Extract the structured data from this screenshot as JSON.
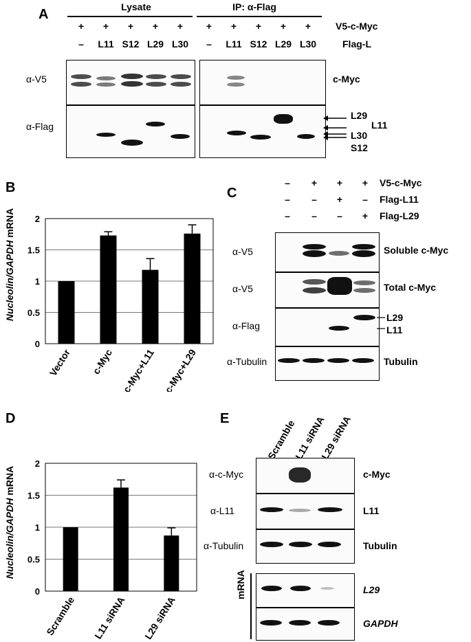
{
  "panel_a": {
    "letter": "A",
    "group_lysate": "Lysate",
    "group_ip": "IP: α-Flag",
    "row1_label": "V5-c-Myc",
    "row2_label": "Flag-L",
    "plus": "+",
    "minus": "–",
    "lane_labels": [
      "–",
      "L11",
      "S12",
      "L29",
      "L30"
    ],
    "blot1_antibody": "α-V5",
    "blot1_protein": "c-Myc",
    "blot2_antibody": "α-Flag",
    "arrow_labels": [
      "L29",
      "L11",
      "L30",
      "S12"
    ]
  },
  "panel_b": {
    "letter": "B",
    "ylabel_italic": "Nucleolin/GAPDH",
    "ylabel_rest": " mRNA"
  },
  "panel_c": {
    "letter": "C",
    "row_labels": [
      "V5-c-Myc",
      "Flag-L11",
      "Flag-L29"
    ],
    "row_signs": [
      [
        "–",
        "+",
        "+",
        "+"
      ],
      [
        "–",
        "–",
        "+",
        "–"
      ],
      [
        "–",
        "–",
        "–",
        "+"
      ]
    ],
    "blots": [
      {
        "antibody": "α-V5",
        "protein": "Soluble c-Myc"
      },
      {
        "antibody": "α-V5",
        "protein": "Total c-Myc"
      },
      {
        "antibody": "α-Flag",
        "protein": ""
      },
      {
        "antibody": "α-Tubulin",
        "protein": "Tubulin"
      }
    ],
    "flag_labels": [
      "L29",
      "L11"
    ]
  },
  "panel_d": {
    "letter": "D",
    "ylabel_italic": "Nucleolin/GAPDH",
    "ylabel_rest": " mRNA"
  },
  "panel_e": {
    "letter": "E",
    "lane_labels": [
      "Scramble",
      "L11 siRNA",
      "L29 siRNA"
    ],
    "blots": [
      {
        "antibody": "α-c-Myc",
        "protein": "c-Myc"
      },
      {
        "antibody": "α-L11",
        "protein": "L11"
      },
      {
        "antibody": "α-Tubulin",
        "protein": "Tubulin"
      }
    ],
    "mrna_label": "mRNA",
    "mrna_rows": [
      "L29",
      "GAPDH"
    ]
  },
  "chart_data": [
    {
      "type": "bar",
      "panel": "B",
      "categories": [
        "Vector",
        "c-Myc",
        "c-Myc+L11",
        "c-Myc+L29"
      ],
      "values": [
        1.0,
        1.73,
        1.18,
        1.76
      ],
      "errors": [
        0,
        0.06,
        0.18,
        0.14
      ],
      "ylabel": "Nucleolin/GAPDH mRNA",
      "ylim": [
        0,
        2
      ],
      "yticks": [
        "0",
        "0.5",
        "1",
        "1.5",
        "2"
      ],
      "grid": true,
      "bar_color": "#000000"
    },
    {
      "type": "bar",
      "panel": "D",
      "categories": [
        "Scramble",
        "L11 siRNA",
        "L29 siRNA"
      ],
      "values": [
        1.0,
        1.62,
        0.87
      ],
      "errors": [
        0,
        0.12,
        0.12
      ],
      "ylabel": "Nucleolin/GAPDH mRNA",
      "ylim": [
        0,
        2
      ],
      "yticks": [
        "0",
        "0.5",
        "1",
        "1.5",
        "2"
      ],
      "grid": true,
      "bar_color": "#000000"
    }
  ]
}
